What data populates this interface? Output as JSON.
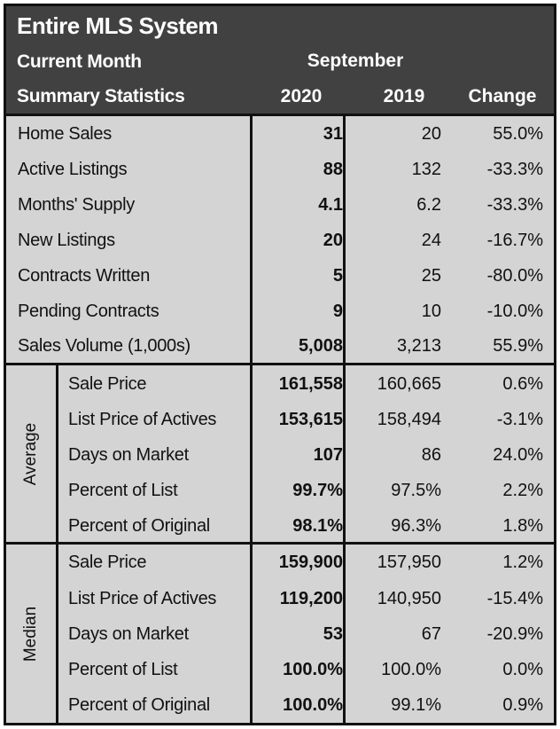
{
  "header": {
    "title": "Entire MLS System",
    "period_label": "Current Month",
    "section_label": "Summary Statistics",
    "month": "September",
    "col_2020": "2020",
    "col_2019": "2019",
    "col_change": "Change"
  },
  "summary_rows": [
    {
      "label": "Home Sales",
      "v2020": "31",
      "v2019": "20",
      "change": "55.0%"
    },
    {
      "label": "Active Listings",
      "v2020": "88",
      "v2019": "132",
      "change": "-33.3%"
    },
    {
      "label": "Months' Supply",
      "v2020": "4.1",
      "v2019": "6.2",
      "change": "-33.3%"
    },
    {
      "label": "New Listings",
      "v2020": "20",
      "v2019": "24",
      "change": "-16.7%"
    },
    {
      "label": "Contracts Written",
      "v2020": "5",
      "v2019": "25",
      "change": "-80.0%"
    },
    {
      "label": "Pending Contracts",
      "v2020": "9",
      "v2019": "10",
      "change": "-10.0%"
    },
    {
      "label": "Sales Volume (1,000s)",
      "v2020": "5,008",
      "v2019": "3,213",
      "change": "55.9%"
    }
  ],
  "average": {
    "label": "Average",
    "rows": [
      {
        "label": "Sale Price",
        "v2020": "161,558",
        "v2019": "160,665",
        "change": "0.6%"
      },
      {
        "label": "List Price of Actives",
        "v2020": "153,615",
        "v2019": "158,494",
        "change": "-3.1%"
      },
      {
        "label": "Days on Market",
        "v2020": "107",
        "v2019": "86",
        "change": "24.0%"
      },
      {
        "label": "Percent of List",
        "v2020": "99.7%",
        "v2019": "97.5%",
        "change": "2.2%"
      },
      {
        "label": "Percent of Original",
        "v2020": "98.1%",
        "v2019": "96.3%",
        "change": "1.8%"
      }
    ]
  },
  "median": {
    "label": "Median",
    "rows": [
      {
        "label": "Sale Price",
        "v2020": "159,900",
        "v2019": "157,950",
        "change": "1.2%"
      },
      {
        "label": "List Price of Actives",
        "v2020": "119,200",
        "v2019": "140,950",
        "change": "-15.4%"
      },
      {
        "label": "Days on Market",
        "v2020": "53",
        "v2019": "67",
        "change": "-20.9%"
      },
      {
        "label": "Percent of List",
        "v2020": "100.0%",
        "v2019": "100.0%",
        "change": "0.0%"
      },
      {
        "label": "Percent of Original",
        "v2020": "100.0%",
        "v2019": "99.1%",
        "change": "0.9%"
      }
    ]
  }
}
